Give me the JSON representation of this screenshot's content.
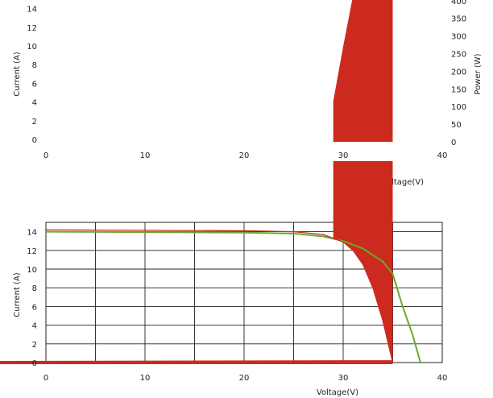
{
  "chart_data": [
    {
      "type": "line",
      "title": "",
      "xlabel": "Voltage(V)",
      "ylabel": "Current (A)",
      "y2label": "Power (W)",
      "xlim": [
        0,
        40
      ],
      "ylim": [
        0,
        15
      ],
      "y2lim": [
        0,
        420
      ],
      "x_ticks": [
        "0",
        "10",
        "20",
        "30",
        "40"
      ],
      "y_ticks": [
        "0",
        "2",
        "4",
        "6",
        "8",
        "10",
        "12",
        "14"
      ],
      "y2_ticks": [
        "0",
        "50",
        "100",
        "150",
        "200",
        "250",
        "300",
        "350",
        "400"
      ],
      "grid": false,
      "colors": {
        "power": "#cc2a1e",
        "xlabel": "#33d6e6"
      },
      "series": [
        {
          "x": [
            29,
            30,
            31,
            32,
            33,
            34,
            35
          ],
          "y": [
            115,
            270,
            415,
            420,
            420,
            420,
            420
          ]
        }
      ]
    },
    {
      "type": "line",
      "title": "",
      "xlabel": "Voltage(V)",
      "ylabel": "Current (A)",
      "xlim": [
        0,
        40
      ],
      "ylim": [
        0,
        15
      ],
      "x_ticks": [
        "0",
        "10",
        "20",
        "30",
        "40"
      ],
      "y_ticks": [
        "0",
        "2",
        "4",
        "6",
        "8",
        "10",
        "12",
        "14"
      ],
      "grid": true,
      "colors": {
        "green": "#6aaa2a",
        "red": "#cc2a1e",
        "fill": "#cc2a1e"
      },
      "series": [
        {
          "x": [
            0,
            10,
            20,
            25,
            28,
            30,
            32,
            34,
            35,
            36,
            37,
            37.8
          ],
          "y": [
            14.0,
            13.95,
            13.9,
            13.8,
            13.5,
            13.0,
            12.2,
            10.8,
            9.5,
            6.0,
            3.0,
            0
          ]
        },
        {
          "x": [
            0,
            10,
            20,
            25,
            28,
            30,
            31,
            32,
            33,
            34,
            35
          ],
          "y": [
            14.2,
            14.15,
            14.1,
            14.0,
            13.7,
            12.9,
            12.0,
            10.5,
            8.0,
            4.5,
            0
          ]
        }
      ]
    }
  ]
}
